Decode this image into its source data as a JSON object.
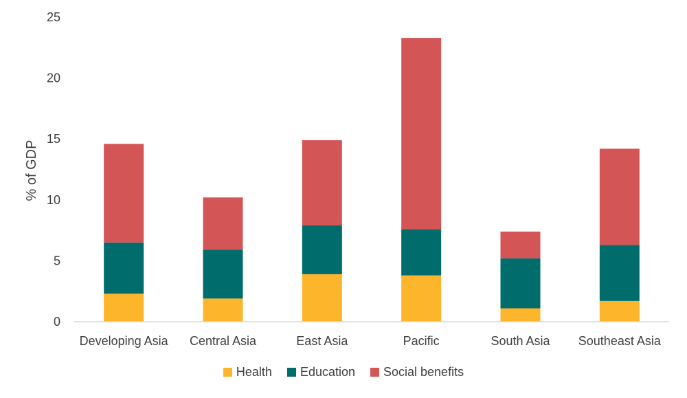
{
  "chart_data": {
    "type": "bar",
    "stacked": true,
    "categories": [
      "Developing Asia",
      "Central Asia",
      "East Asia",
      "Pacific",
      "South Asia",
      "Southeast Asia"
    ],
    "series": [
      {
        "name": "Health",
        "color": "#FDB52C",
        "values": [
          2.3,
          1.9,
          3.9,
          3.8,
          1.1,
          1.7
        ]
      },
      {
        "name": "Education",
        "color": "#006C6C",
        "values": [
          4.2,
          4.0,
          4.0,
          3.8,
          4.1,
          4.6
        ]
      },
      {
        "name": "Social benefits",
        "color": "#D35555",
        "values": [
          8.1,
          4.3,
          7.0,
          15.7,
          2.2,
          7.9
        ]
      }
    ],
    "ylabel": "% of GDP",
    "yticks": [
      "0",
      "5",
      "10",
      "15",
      "20",
      "25"
    ],
    "ylim": [
      0,
      25
    ],
    "grid": false,
    "legend_position": "bottom"
  }
}
